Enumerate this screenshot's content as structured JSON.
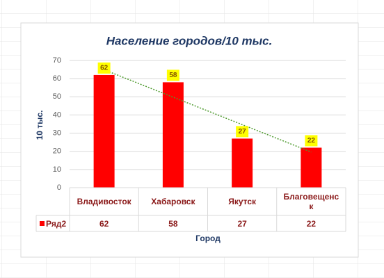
{
  "chart_data": {
    "type": "bar",
    "title": "Население городов/10 тыс.",
    "y_label": "10 тыс.",
    "x_label": "Город",
    "categories": [
      "Владивосток",
      "Хабаровск",
      "Якутск",
      "Благовещенск"
    ],
    "series": [
      {
        "name": "Ряд2",
        "color": "#ff0000",
        "values": [
          62,
          58,
          27,
          22
        ]
      }
    ],
    "ylim": [
      0,
      70
    ],
    "yticks": [
      0,
      10,
      20,
      30,
      40,
      50,
      60,
      70
    ],
    "grid": true,
    "data_labels": true,
    "label_background": "#ffff00",
    "trendline": {
      "type": "linear",
      "color": "#4e9a2e"
    },
    "data_table": true
  }
}
